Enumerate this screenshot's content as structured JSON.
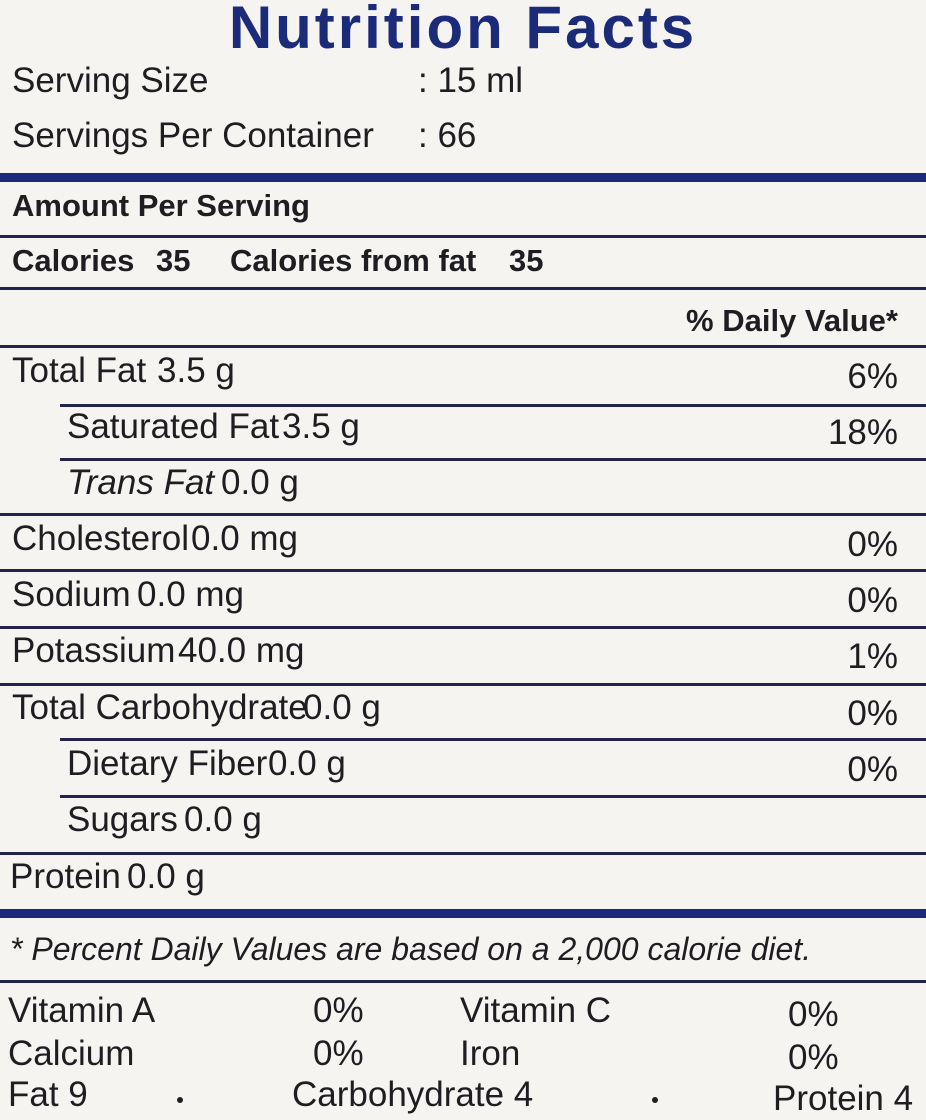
{
  "title": "Nutrition Facts",
  "serving": {
    "size_label": "Serving Size",
    "size_value": ": 15 ml",
    "per_container_label": "Servings Per Container",
    "per_container_value": ": 66"
  },
  "amount_header": "Amount Per Serving",
  "calories": {
    "label": "Calories",
    "value": "35",
    "from_fat_label": "Calories from fat",
    "from_fat_value": "35"
  },
  "dv_header": "% Daily Value*",
  "nutrients": [
    {
      "name": "Total Fat",
      "amount": "3.5 g",
      "dv": "6%"
    },
    {
      "name": "Saturated Fat",
      "amount": "3.5 g",
      "dv": "18%"
    },
    {
      "name": "Trans Fat",
      "amount": "0.0 g",
      "dv": ""
    },
    {
      "name": "Cholesterol",
      "amount": "0.0 mg",
      "dv": "0%"
    },
    {
      "name": "Sodium",
      "amount": "0.0 mg",
      "dv": "0%"
    },
    {
      "name": "Potassium",
      "amount": "40.0 mg",
      "dv": "1%"
    },
    {
      "name": "Total Carbohydrate",
      "amount": "0.0 g",
      "dv": "0%"
    },
    {
      "name": "Dietary Fiber",
      "amount": "0.0 g",
      "dv": "0%"
    },
    {
      "name": "Sugars",
      "amount": "0.0 g",
      "dv": ""
    },
    {
      "name": "Protein",
      "amount": "0.0 g",
      "dv": ""
    }
  ],
  "footnote": "* Percent Daily Values are based on a 2,000 calorie diet.",
  "vitamins": [
    {
      "name": "Vitamin A",
      "value": "0%"
    },
    {
      "name": "Vitamin C",
      "value": "0%"
    },
    {
      "name": "Calcium",
      "value": "0%"
    },
    {
      "name": "Iron",
      "value": "0%"
    }
  ],
  "calories_per_gram": {
    "fat": "Fat 9",
    "carbohydrate": "Carbohydrate 4",
    "protein": "Protein 4"
  },
  "colors": {
    "title": "#1c2a7a",
    "rule": "#22244a",
    "background": "#f6f4f1"
  }
}
